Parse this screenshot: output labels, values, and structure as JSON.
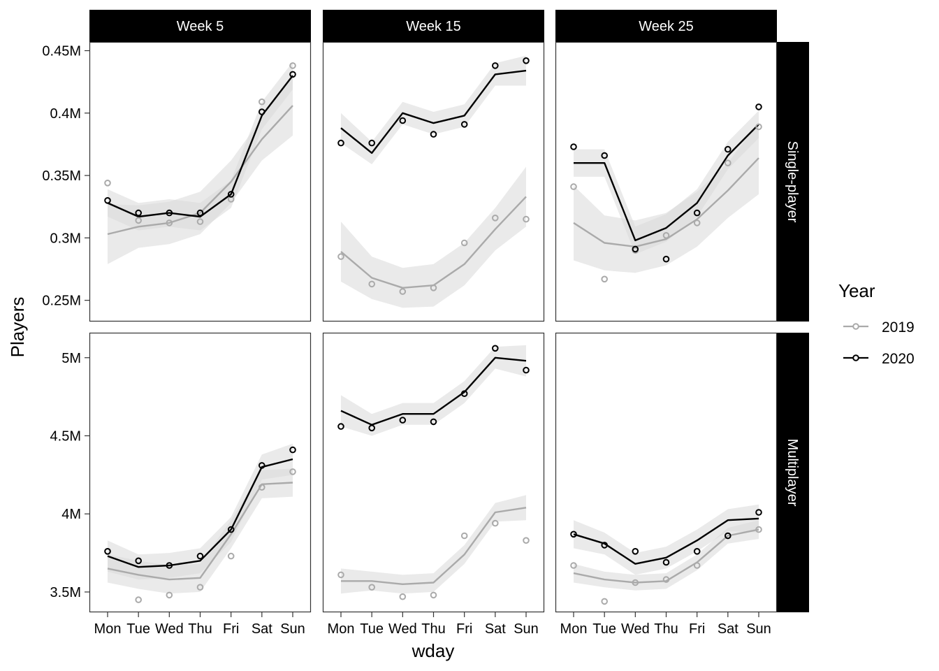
{
  "chart_data": {
    "type": "line",
    "x_label": "wday",
    "y_label": "Players",
    "categories": [
      "Mon",
      "Tue",
      "Wed",
      "Thu",
      "Fri",
      "Sat",
      "Sun"
    ],
    "columns": [
      "Week 5",
      "Week 15",
      "Week 25"
    ],
    "rows": [
      {
        "label": "Single-player",
        "ylim": [
          0.233,
          0.457
        ],
        "yticks": [
          0.25,
          0.3,
          0.35,
          0.4,
          0.45
        ],
        "ytick_labels": [
          "0.25M",
          "0.3M",
          "0.35M",
          "0.4M",
          "0.45M"
        ]
      },
      {
        "label": "Multiplayer",
        "ylim": [
          3.37,
          5.16
        ],
        "yticks": [
          3.5,
          4.0,
          4.5,
          5.0
        ],
        "ytick_labels": [
          "3.5M",
          "4M",
          "4.5M",
          "5M"
        ]
      }
    ],
    "legend": {
      "title": "Year",
      "position": "right",
      "entries": [
        {
          "label": "2019",
          "color": "#aaaaaa"
        },
        {
          "label": "2020",
          "color": "#000000"
        }
      ]
    },
    "colors": {
      "2019": "#aaaaaa",
      "2020": "#000000",
      "band": "#e6e6e6",
      "strip": "#000000"
    },
    "panels": [
      {
        "row": 0,
        "col": 0,
        "series": [
          {
            "name": "2019",
            "points": [
              0.344,
              0.314,
              0.312,
              0.313,
              0.331,
              0.409,
              0.438
            ],
            "fit": [
              0.303,
              0.309,
              0.312,
              0.32,
              0.345,
              0.379,
              0.406
            ],
            "band": [
              0.024,
              0.017,
              0.017,
              0.017,
              0.017,
              0.017,
              0.024
            ]
          },
          {
            "name": "2020",
            "points": [
              0.33,
              0.32,
              0.32,
              0.32,
              0.335,
              0.401,
              0.431
            ],
            "fit": [
              0.328,
              0.317,
              0.32,
              0.317,
              0.335,
              0.398,
              0.43
            ],
            "band": [
              0.011,
              0.011,
              0.011,
              0.011,
              0.011,
              0.011,
              0.011
            ]
          }
        ]
      },
      {
        "row": 0,
        "col": 1,
        "series": [
          {
            "name": "2019",
            "points": [
              0.285,
              0.263,
              0.257,
              0.26,
              0.296,
              0.316,
              0.315
            ],
            "fit": [
              0.289,
              0.268,
              0.26,
              0.262,
              0.279,
              0.307,
              0.333
            ],
            "band": [
              0.024,
              0.017,
              0.016,
              0.017,
              0.017,
              0.017,
              0.024
            ]
          },
          {
            "name": "2020",
            "points": [
              0.376,
              0.376,
              0.394,
              0.383,
              0.391,
              0.438,
              0.442
            ],
            "fit": [
              0.388,
              0.368,
              0.4,
              0.392,
              0.398,
              0.431,
              0.434
            ],
            "band": [
              0.012,
              0.009,
              0.009,
              0.009,
              0.009,
              0.009,
              0.012
            ]
          }
        ]
      },
      {
        "row": 0,
        "col": 2,
        "series": [
          {
            "name": "2019",
            "points": [
              0.341,
              0.267,
              0.29,
              0.302,
              0.312,
              0.36,
              0.389
            ],
            "fit": [
              0.312,
              0.296,
              0.293,
              0.299,
              0.315,
              0.338,
              0.364
            ],
            "band": [
              0.03,
              0.022,
              0.021,
              0.021,
              0.022,
              0.022,
              0.029
            ]
          },
          {
            "name": "2020",
            "points": [
              0.373,
              0.366,
              0.291,
              0.283,
              0.32,
              0.371,
              0.405
            ],
            "fit": [
              0.36,
              0.36,
              0.298,
              0.308,
              0.328,
              0.366,
              0.391
            ],
            "band": [
              0.011,
              0.011,
              0.011,
              0.011,
              0.011,
              0.011,
              0.011
            ]
          }
        ]
      },
      {
        "row": 1,
        "col": 0,
        "series": [
          {
            "name": "2019",
            "points": [
              3.76,
              3.45,
              3.48,
              3.53,
              3.73,
              4.17,
              4.27
            ],
            "fit": [
              3.65,
              3.61,
              3.58,
              3.59,
              3.87,
              4.19,
              4.2
            ],
            "band": [
              0.09,
              0.09,
              0.09,
              0.09,
              0.09,
              0.09,
              0.09
            ]
          },
          {
            "name": "2020",
            "points": [
              3.76,
              3.7,
              3.67,
              3.73,
              3.9,
              4.31,
              4.41
            ],
            "fit": [
              3.73,
              3.66,
              3.67,
              3.7,
              3.9,
              4.3,
              4.35
            ],
            "band": [
              0.1,
              0.08,
              0.08,
              0.08,
              0.08,
              0.08,
              0.1
            ]
          }
        ]
      },
      {
        "row": 1,
        "col": 1,
        "series": [
          {
            "name": "2019",
            "points": [
              3.61,
              3.53,
              3.47,
              3.48,
              3.86,
              3.94,
              3.83
            ],
            "fit": [
              3.57,
              3.57,
              3.55,
              3.56,
              3.74,
              4.01,
              4.04
            ],
            "band": [
              0.08,
              0.06,
              0.06,
              0.06,
              0.06,
              0.06,
              0.08
            ]
          },
          {
            "name": "2020",
            "points": [
              4.56,
              4.55,
              4.6,
              4.59,
              4.77,
              5.06,
              4.92
            ],
            "fit": [
              4.66,
              4.57,
              4.64,
              4.64,
              4.78,
              5.0,
              4.98
            ],
            "band": [
              0.1,
              0.07,
              0.07,
              0.07,
              0.07,
              0.07,
              0.1
            ]
          }
        ]
      },
      {
        "row": 1,
        "col": 2,
        "series": [
          {
            "name": "2019",
            "points": [
              3.67,
              3.44,
              3.56,
              3.58,
              3.67,
              3.86,
              3.9
            ],
            "fit": [
              3.62,
              3.58,
              3.56,
              3.57,
              3.69,
              3.86,
              3.9
            ],
            "band": [
              0.06,
              0.05,
              0.05,
              0.05,
              0.05,
              0.05,
              0.06
            ]
          },
          {
            "name": "2020",
            "points": [
              3.87,
              3.8,
              3.76,
              3.69,
              3.76,
              3.86,
              4.01
            ],
            "fit": [
              3.87,
              3.81,
              3.68,
              3.72,
              3.83,
              3.96,
              3.97
            ],
            "band": [
              0.09,
              0.07,
              0.07,
              0.07,
              0.07,
              0.07,
              0.09
            ]
          }
        ]
      }
    ]
  }
}
